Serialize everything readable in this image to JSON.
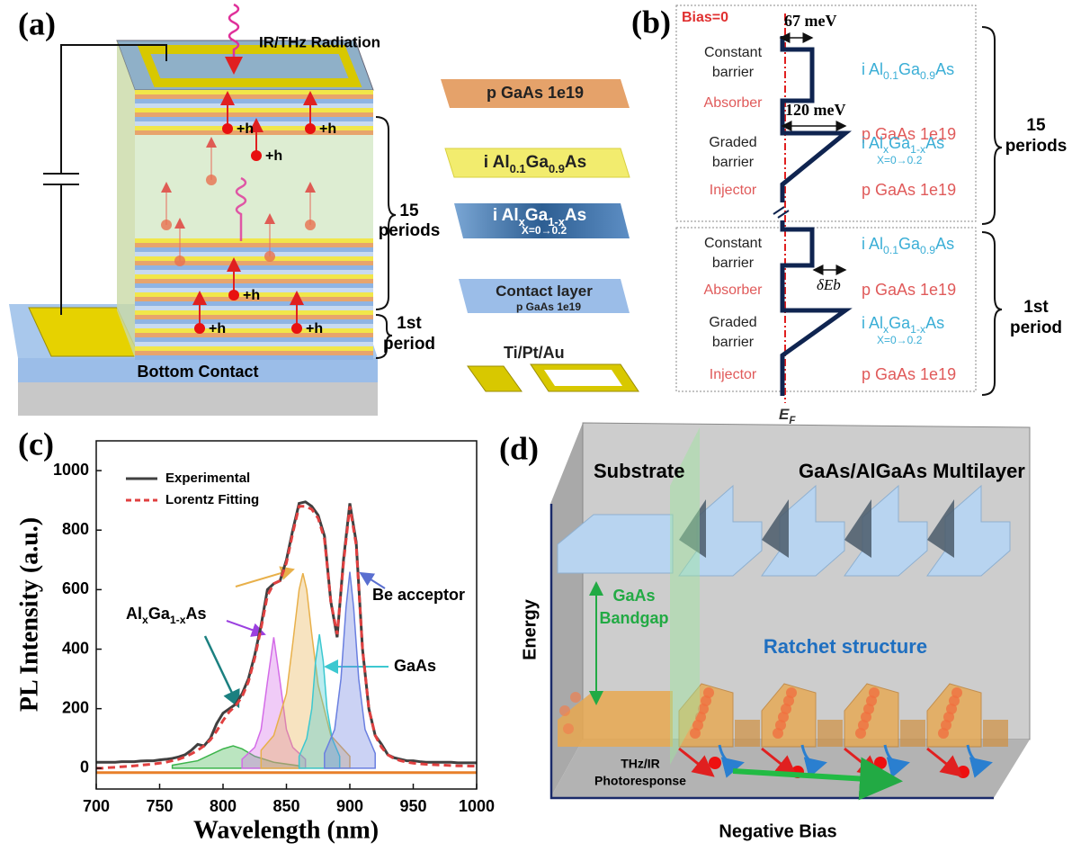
{
  "panel_a": {
    "label": "(a)",
    "radiation": "IR/THz Radiation",
    "carrier_labels": [
      "+h",
      "+h",
      "+h",
      "+h",
      "+h",
      "+h"
    ],
    "periods": [
      "15",
      "periods"
    ],
    "first_period": [
      "1st",
      "period"
    ],
    "bottom_contact": "Bottom Contact",
    "layers": [
      {
        "formula": [
          "p GaAs  1e19"
        ]
      },
      {
        "formula": [
          "i  Al",
          "0.1",
          "Ga",
          "0.9",
          "As"
        ]
      },
      {
        "formula": [
          "i  Al",
          "x",
          "Ga",
          "1-x",
          "As"
        ],
        "note": "X=0→0.2"
      },
      {
        "formula": [
          "Contact layer"
        ],
        "note": "p GaAs  1e19"
      },
      {
        "formula": [
          "Ti/Pt/Au"
        ]
      }
    ]
  },
  "panel_b": {
    "label": "(b)",
    "bias": "Bias=0",
    "barrier_height": "67 meV",
    "graded_height": "120 meV",
    "delta": "δEb",
    "fermi": [
      "E",
      "F"
    ],
    "periods": [
      "15",
      "periods"
    ],
    "first_period": [
      "1st",
      "period"
    ],
    "blocks": [
      {
        "rows": [
          {
            "label": [
              "Constant",
              "barrier"
            ],
            "color": "#222222",
            "material": [
              "i  Al",
              "0.1",
              "Ga",
              "0.9",
              "As"
            ],
            "material_color": "#3aaed6"
          },
          {
            "label": [
              "Absorber"
            ],
            "color": "#e05a5a",
            "material": [
              "p GaAs  1e19"
            ],
            "material_color": "#e05a5a"
          },
          {
            "label": [
              "Graded",
              "barrier"
            ],
            "color": "#222222",
            "material": [
              "i  Al",
              "x",
              "Ga",
              "1-x",
              "As"
            ],
            "note": "X=0→0.2",
            "material_color": "#3aaed6"
          },
          {
            "label": [
              "Injector"
            ],
            "color": "#e05a5a",
            "material": [
              "p GaAs  1e19"
            ],
            "material_color": "#e05a5a"
          }
        ]
      },
      {
        "rows": [
          {
            "label": [
              "Constant",
              "barrier"
            ],
            "color": "#222222",
            "material": [
              "i  Al",
              "0.1",
              "Ga",
              "0.9",
              "As"
            ],
            "material_color": "#3aaed6"
          },
          {
            "label": [
              "Absorber"
            ],
            "color": "#e05a5a",
            "material": [
              "p GaAs  1e19"
            ],
            "material_color": "#e05a5a"
          },
          {
            "label": [
              "Graded",
              "barrier"
            ],
            "color": "#222222",
            "material": [
              "i  Al",
              "x",
              "Ga",
              "1-x",
              "As"
            ],
            "note": "X=0→0.2",
            "material_color": "#3aaed6"
          },
          {
            "label": [
              "Injector"
            ],
            "color": "#e05a5a",
            "material": [
              "p GaAs  1e19"
            ],
            "material_color": "#e05a5a"
          }
        ]
      }
    ]
  },
  "chart_data": {
    "type": "line",
    "label": "(c)",
    "x_label": "Wavelength (nm)",
    "y_label": "PL Intensity (a.u.)",
    "xlim": [
      700,
      1000
    ],
    "xticks": [
      700,
      750,
      800,
      850,
      900,
      950,
      1000
    ],
    "ylim": [
      -70,
      1100
    ],
    "yticks": [
      0,
      200,
      400,
      600,
      800,
      1000
    ],
    "series": [
      {
        "name": "Experimental",
        "color": "#404040",
        "style": "solid",
        "x": [
          700,
          705,
          710,
          715,
          720,
          725,
          730,
          735,
          740,
          745,
          750,
          755,
          760,
          765,
          770,
          775,
          780,
          785,
          790,
          795,
          800,
          805,
          810,
          815,
          820,
          825,
          830,
          835,
          840,
          845,
          850,
          855,
          860,
          865,
          870,
          875,
          880,
          885,
          890,
          895,
          900,
          905,
          910,
          915,
          920,
          925,
          930,
          935,
          940,
          945,
          950,
          955,
          960,
          965,
          970,
          975,
          980,
          985,
          990,
          995,
          1000
        ],
        "values": [
          20,
          20,
          20,
          20,
          22,
          22,
          22,
          24,
          25,
          25,
          28,
          30,
          33,
          38,
          45,
          60,
          80,
          75,
          100,
          150,
          185,
          200,
          215,
          250,
          300,
          380,
          480,
          600,
          620,
          630,
          700,
          800,
          890,
          895,
          880,
          850,
          780,
          560,
          440,
          700,
          890,
          760,
          400,
          200,
          110,
          80,
          45,
          35,
          30,
          25,
          25,
          22,
          20,
          20,
          20,
          20,
          20,
          18,
          18,
          18,
          18
        ]
      },
      {
        "name": "Lorentz Fitting",
        "color": "#e04040",
        "style": "dashed",
        "x": [
          700,
          705,
          710,
          715,
          720,
          725,
          730,
          735,
          740,
          745,
          750,
          755,
          760,
          765,
          770,
          775,
          780,
          785,
          790,
          795,
          800,
          805,
          810,
          815,
          820,
          825,
          830,
          835,
          840,
          845,
          850,
          855,
          860,
          865,
          870,
          875,
          880,
          885,
          890,
          895,
          900,
          905,
          910,
          915,
          920,
          925,
          930,
          935,
          940,
          945,
          950,
          955,
          960,
          965,
          970,
          975,
          980,
          985,
          990,
          995,
          1000
        ],
        "values": [
          0,
          0,
          2,
          3,
          5,
          6,
          8,
          10,
          12,
          14,
          17,
          20,
          25,
          30,
          38,
          48,
          60,
          75,
          95,
          125,
          160,
          190,
          210,
          240,
          290,
          370,
          470,
          580,
          620,
          630,
          690,
          790,
          880,
          880,
          870,
          840,
          770,
          560,
          450,
          690,
          880,
          750,
          400,
          200,
          110,
          70,
          45,
          32,
          25,
          20,
          17,
          15,
          13,
          12,
          11,
          10,
          9,
          8,
          8,
          7,
          7
        ]
      },
      {
        "color": "#e8802a",
        "style": "solid",
        "x": [
          700,
          1000
        ],
        "values": [
          -15,
          -15
        ]
      },
      {
        "color": "#3cb44b",
        "style": "area",
        "x": [
          760,
          780,
          790,
          800,
          808,
          815,
          825,
          840,
          860
        ],
        "values": [
          10,
          25,
          45,
          65,
          75,
          65,
          40,
          20,
          8
        ]
      },
      {
        "color": "#d46be8",
        "style": "area",
        "x": [
          815,
          825,
          830,
          835,
          840,
          845,
          850,
          855,
          865
        ],
        "values": [
          30,
          70,
          130,
          290,
          440,
          290,
          130,
          70,
          30
        ]
      },
      {
        "color": "#e8b04a",
        "style": "area",
        "x": [
          830,
          840,
          850,
          855,
          860,
          863,
          866,
          870,
          875,
          885,
          900
        ],
        "values": [
          60,
          110,
          250,
          420,
          600,
          655,
          600,
          450,
          280,
          110,
          40
        ]
      },
      {
        "color": "#3cc8d0",
        "style": "area",
        "x": [
          860,
          866,
          870,
          873,
          876,
          879,
          882,
          886,
          892
        ],
        "values": [
          40,
          100,
          200,
          360,
          450,
          360,
          200,
          100,
          40
        ]
      },
      {
        "color": "#6a7fe0",
        "style": "area",
        "x": [
          880,
          888,
          893,
          897,
          900,
          903,
          907,
          912,
          920
        ],
        "values": [
          50,
          130,
          300,
          540,
          660,
          540,
          300,
          130,
          50
        ]
      }
    ],
    "annotations": {
      "alloy": [
        "Al",
        "x",
        "Ga",
        "1-x",
        "As"
      ],
      "gaas": "GaAs",
      "acceptor": "Be acceptor"
    }
  },
  "panel_d": {
    "label": "(d)",
    "substrate": "Substrate",
    "multilayer": "GaAs/AlGaAs Multilayer",
    "energy": "Energy",
    "bandgap": [
      "GaAs",
      "Bandgap"
    ],
    "ratchet": "Ratchet structure",
    "photoresponse": [
      "THz/IR",
      "Photoresponse"
    ],
    "bias": "Negative Bias"
  }
}
